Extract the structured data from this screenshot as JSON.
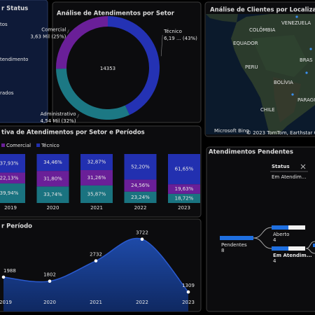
{
  "status_panel": {
    "title": "r Status",
    "items": [
      "tos",
      "tendimento",
      "rados"
    ]
  },
  "chart_data": [
    {
      "type": "donut",
      "title": "Análise de Atendimentos por Setor",
      "total": 14353,
      "categories": [
        "Técnico",
        "Administrativo",
        "Comercial"
      ],
      "values": [
        6190,
        4540,
        3630
      ],
      "value_labels": [
        "6,19 ... (43%)",
        "4,54 Mil (32%)",
        "3,63 Mil (25%)"
      ],
      "colors": [
        "#2432b4",
        "#1c7884",
        "#6a1f98"
      ]
    },
    {
      "type": "map",
      "title": "Análise de Clientes por Localização",
      "places": [
        "COLÔMBIA",
        "VENEZUELA",
        "EQUADOR",
        "PERU",
        "BRAS",
        "BOLÍVIA",
        "CHILE",
        "PARAGUAI"
      ],
      "attribution": [
        "Microsoft Bing",
        "© 2023 TomTom, Earthstar Geographics"
      ]
    },
    {
      "type": "stacked_bar_100",
      "title": "tiva de Atendimentos por Setor e Períodos",
      "categories": [
        "2019",
        "2020",
        "2021",
        "2022",
        "2023"
      ],
      "ylim": [
        0,
        100
      ],
      "series": [
        {
          "color": "#1a7380",
          "values": [
            39.94,
            33.74,
            35.87,
            23.24,
            18.72
          ],
          "value_labels": [
            "39,94%",
            "33,74%",
            "35,87%",
            "23,24%",
            "18,72%"
          ]
        },
        {
          "name": "Comercial",
          "color": "#6a1f98",
          "values": [
            22.13,
            31.8,
            31.26,
            24.56,
            19.63
          ],
          "value_labels": [
            "22,13%",
            "31,80%",
            "31,26%",
            "24,56%",
            "19,63%"
          ]
        },
        {
          "name": "Técnico",
          "color": "#2230b0",
          "values": [
            37.93,
            34.46,
            32.87,
            52.2,
            61.65
          ],
          "value_labels": [
            "37,93%",
            "34,46%",
            "32,87%",
            "52,20%",
            "61,65%"
          ]
        }
      ]
    },
    {
      "type": "area",
      "title": "r Período",
      "categories": [
        "2019",
        "2020",
        "2021",
        "2022",
        "2023"
      ],
      "values": [
        1988,
        1802,
        2732,
        3722,
        1309
      ],
      "ylim": [
        0,
        4000
      ],
      "color": "#2a5ad0"
    }
  ],
  "decomposition_tree": {
    "title": "Atendimentos Pendentes",
    "filter_label": "Status",
    "filter_value": "Em Atendim...",
    "nodes": [
      {
        "label": "Pendentes",
        "value": 8
      },
      {
        "label": "Aberto",
        "value": 4
      },
      {
        "label": "Em Atendim...",
        "value": 4
      }
    ]
  }
}
